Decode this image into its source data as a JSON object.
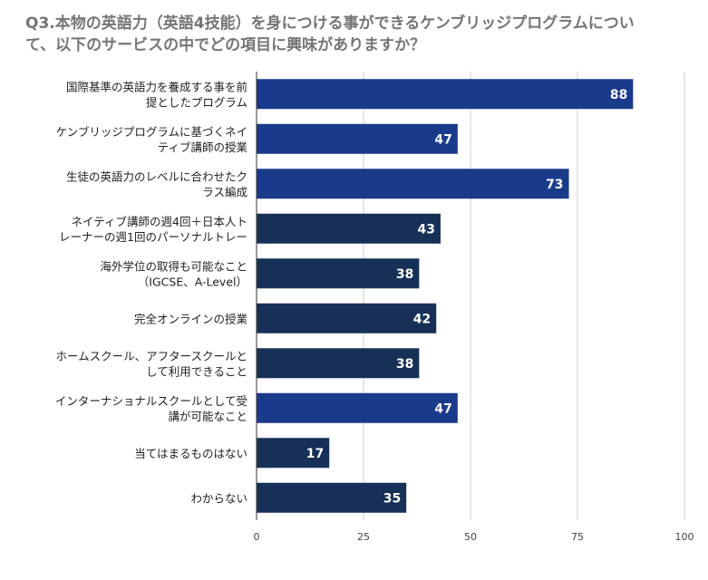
{
  "chart_data": {
    "type": "bar",
    "orientation": "horizontal",
    "title_lines": [
      "Q3.本物の英語力（英語4技能）を身につける事ができるケンブリッジプログラムについ",
      "て、以下のサービスの中でどの項目に興味がありますか？"
    ],
    "categories": [
      [
        "国際基準の英語力を養成する事を前",
        "提としたプログラム"
      ],
      [
        "ケンブリッジプログラムに基づくネイ",
        "ティブ講師の授業"
      ],
      [
        "生徒の英語力のレベルに合わせたク",
        "ラス編成"
      ],
      [
        "ネイティブ講師の週4回＋日本人ト",
        "レーナーの週1回のパーソナルトレー"
      ],
      [
        "海外学位の取得も可能なこと",
        "（IGCSE、A-Level）"
      ],
      [
        "完全オンラインの授業"
      ],
      [
        "ホームスクール、アフタースクールと",
        "して利用できること"
      ],
      [
        "インターナショナルスクールとして受",
        "講が可能なこと"
      ],
      [
        "当てはまるものはない"
      ],
      [
        "わからない"
      ]
    ],
    "values": [
      88,
      47,
      73,
      43,
      38,
      42,
      38,
      47,
      17,
      35
    ],
    "bar_colors": [
      "#1a3a8c",
      "#1a3a8c",
      "#1a3a8c",
      "#163058",
      "#163058",
      "#163058",
      "#163058",
      "#1a3a8c",
      "#163058",
      "#163058"
    ],
    "xlim": [
      0,
      100
    ],
    "xticks": [
      0,
      25,
      50,
      75,
      100
    ],
    "grid": true,
    "legend": "none"
  }
}
